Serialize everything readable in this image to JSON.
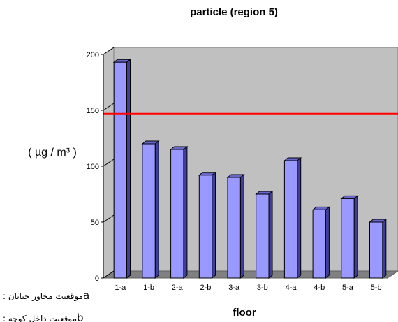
{
  "chart_data": {
    "type": "bar",
    "title": "particle (region 5)",
    "xlabel": "floor",
    "ylabel": "( µg / m³ )",
    "categories": [
      "1-a",
      "1-b",
      "2-a",
      "2-b",
      "3-a",
      "3-b",
      "4-a",
      "4-b",
      "5-a",
      "5-b"
    ],
    "values": [
      193,
      120,
      115,
      92,
      90,
      75,
      105,
      61,
      71,
      50
    ],
    "yticks": [
      0,
      50,
      100,
      150,
      200
    ],
    "ylim": [
      0,
      200
    ],
    "reference_line": {
      "value": 147,
      "color": "#ff0000"
    },
    "grid": false,
    "bar_color": "#9999ff",
    "bar_side_color": "#3f3f99",
    "plot_background": "#c0c0c0",
    "legend_notes": [
      {
        "key": "a",
        "text": ": موقعیت مجاور خیابان"
      },
      {
        "key": "b",
        "text": ": موقعیت داخل کوچه"
      }
    ]
  }
}
